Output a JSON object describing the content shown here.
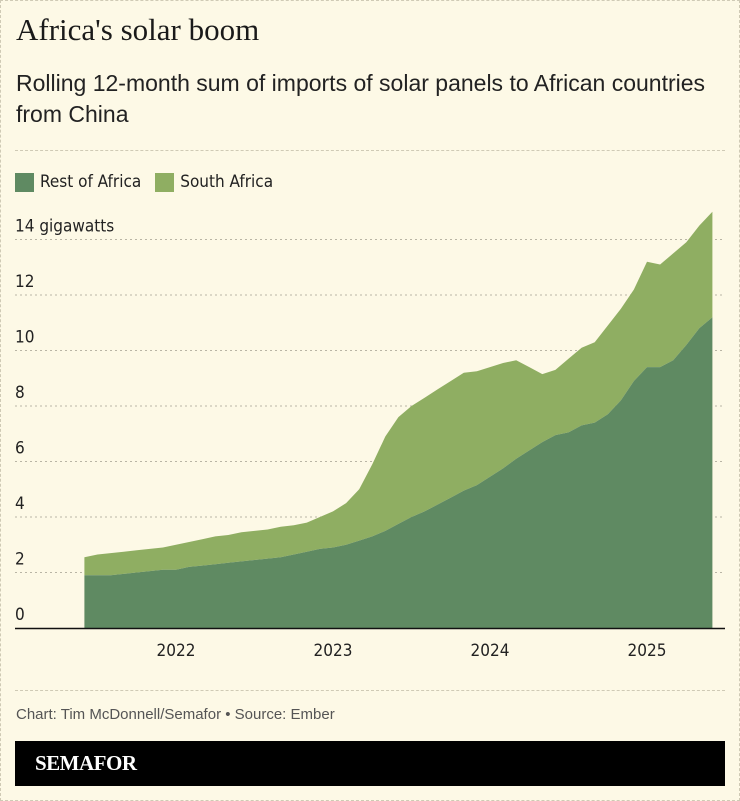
{
  "title": "Africa's solar boom",
  "subtitle": "Rolling 12-month sum of imports of solar panels to African countries from China",
  "credit": "Chart: Tim McDonnell/Semafor • Source: Ember",
  "brand": "SEMAFOR",
  "chart_data": {
    "type": "area",
    "stacked": true,
    "title": "",
    "xlabel": "",
    "ylabel": "",
    "y_unit_label": "gigawatts",
    "ylim": [
      0,
      14
    ],
    "yticks": [
      0,
      2,
      4,
      6,
      8,
      10,
      12,
      14
    ],
    "ytick_labels": [
      "0",
      "2",
      "4",
      "6",
      "8",
      "10",
      "12",
      "14 gigawatts"
    ],
    "xticks": [
      "2022",
      "2023",
      "2024",
      "2025"
    ],
    "x_start": "2021-06",
    "x_end": "2025-06",
    "grid": true,
    "legend": "top-left",
    "colors": {
      "Rest of Africa": "#5f8a62",
      "South Africa": "#8fae62"
    },
    "x": [
      "2021-06",
      "2021-07",
      "2021-08",
      "2021-09",
      "2021-10",
      "2021-11",
      "2021-12",
      "2022-01",
      "2022-02",
      "2022-03",
      "2022-04",
      "2022-05",
      "2022-06",
      "2022-07",
      "2022-08",
      "2022-09",
      "2022-10",
      "2022-11",
      "2022-12",
      "2023-01",
      "2023-02",
      "2023-03",
      "2023-04",
      "2023-05",
      "2023-06",
      "2023-07",
      "2023-08",
      "2023-09",
      "2023-10",
      "2023-11",
      "2023-12",
      "2024-01",
      "2024-02",
      "2024-03",
      "2024-04",
      "2024-05",
      "2024-06",
      "2024-07",
      "2024-08",
      "2024-09",
      "2024-10",
      "2024-11",
      "2024-12",
      "2025-01",
      "2025-02",
      "2025-03",
      "2025-04",
      "2025-05",
      "2025-06"
    ],
    "series": [
      {
        "name": "Rest of Africa",
        "values": [
          1.9,
          1.9,
          1.9,
          1.95,
          2.0,
          2.05,
          2.1,
          2.1,
          2.2,
          2.25,
          2.3,
          2.35,
          2.4,
          2.45,
          2.5,
          2.55,
          2.65,
          2.75,
          2.85,
          2.9,
          3.0,
          3.15,
          3.3,
          3.5,
          3.75,
          4.0,
          4.2,
          4.45,
          4.7,
          4.95,
          5.15,
          5.45,
          5.75,
          6.1,
          6.4,
          6.7,
          6.95,
          7.05,
          7.3,
          7.4,
          7.7,
          8.2,
          8.9,
          9.4,
          9.4,
          9.65,
          10.2,
          10.8,
          11.2
        ]
      },
      {
        "name": "South Africa",
        "values": [
          0.65,
          0.75,
          0.8,
          0.8,
          0.8,
          0.8,
          0.8,
          0.9,
          0.9,
          0.95,
          1.0,
          1.0,
          1.05,
          1.05,
          1.05,
          1.1,
          1.05,
          1.05,
          1.15,
          1.3,
          1.5,
          1.85,
          2.6,
          3.4,
          3.85,
          4.0,
          4.1,
          4.15,
          4.2,
          4.25,
          4.1,
          3.95,
          3.8,
          3.55,
          3.0,
          2.45,
          2.35,
          2.65,
          2.8,
          2.9,
          3.2,
          3.3,
          3.3,
          3.8,
          3.7,
          3.85,
          3.7,
          3.7,
          3.8
        ]
      }
    ]
  }
}
